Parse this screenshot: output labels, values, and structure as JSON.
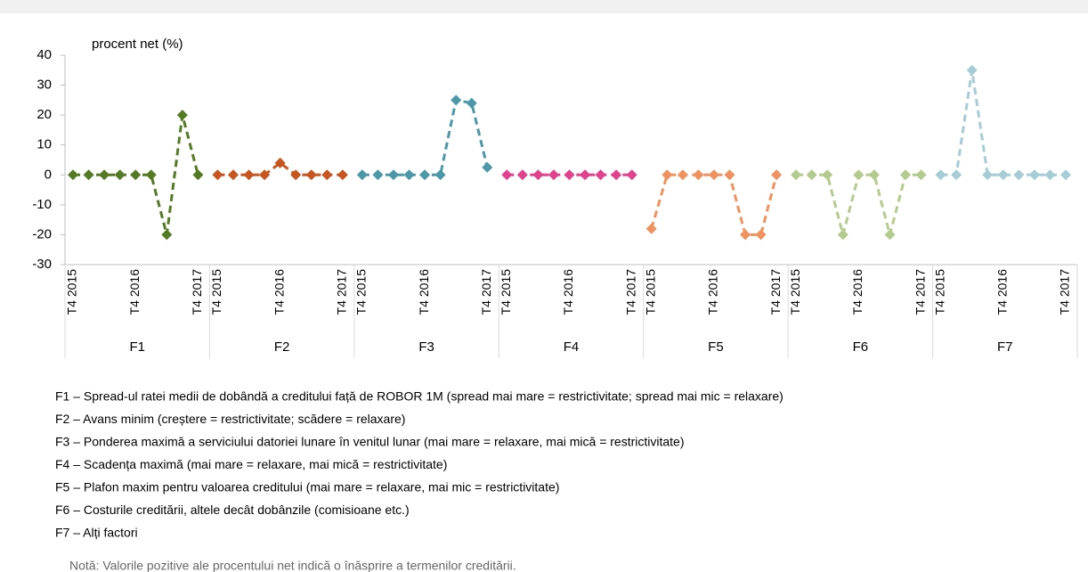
{
  "chart_data": {
    "type": "line",
    "y_label": "procent net (%)",
    "ylim": [
      -30,
      40
    ],
    "yticks": [
      -30,
      -20,
      -10,
      0,
      10,
      20,
      30,
      40
    ],
    "categories": [
      "T4 2015",
      null,
      null,
      null,
      "T4 2016",
      null,
      null,
      null,
      "T4 2017"
    ],
    "series": [
      {
        "name": "F1",
        "color": "#557a24",
        "values": [
          0,
          0,
          0,
          0,
          0,
          0,
          -20,
          20,
          0
        ]
      },
      {
        "name": "F2",
        "color": "#c8541e",
        "values": [
          0,
          0,
          0,
          0,
          4,
          0,
          0,
          0,
          0
        ]
      },
      {
        "name": "F3",
        "color": "#4a98a8",
        "values": [
          0,
          0,
          0,
          0,
          0,
          0,
          25,
          24,
          2.5
        ]
      },
      {
        "name": "F4",
        "color": "#e2418d",
        "values": [
          0,
          0,
          0,
          0,
          0,
          0,
          0,
          0,
          0
        ]
      },
      {
        "name": "F5",
        "color": "#f0925e",
        "values": [
          -18,
          0,
          0,
          0,
          0,
          0,
          -20,
          -20,
          0
        ]
      },
      {
        "name": "F6",
        "color": "#b3cb8c",
        "values": [
          0,
          0,
          0,
          -20,
          0,
          0,
          -20,
          0,
          0
        ]
      },
      {
        "name": "F7",
        "color": "#a6ccd6",
        "values": [
          0,
          0,
          35,
          0,
          0,
          0,
          0,
          0,
          0
        ]
      }
    ],
    "notes": [
      "F1 – Spread-ul ratei medii de dobândă  a creditului față de ROBOR 1M (spread mai mare = restrictivitate; spread mai mic = relaxare)",
      "F2 – Avans minim (creștere = restrictivitate; scădere = relaxare)",
      "F3 – Ponderea maximă a serviciului datoriei lunare în venitul lunar  (mai mare = relaxare, mai mică = restrictivitate)",
      "F4 – Scadența maximă (mai mare = relaxare, mai mică = restrictivitate)",
      "F5 – Plafon maxim pentru valoarea creditului  (mai mare = relaxare, mai mic = restrictivitate)",
      "F6 – Costurile creditării, altele decât dobânzile  (comisioane etc.)",
      "F7 – Alți factori"
    ],
    "footnote": "Notă: Valorile pozitive ale procentului  net indică o înăsprire a  termenilor  creditării."
  }
}
